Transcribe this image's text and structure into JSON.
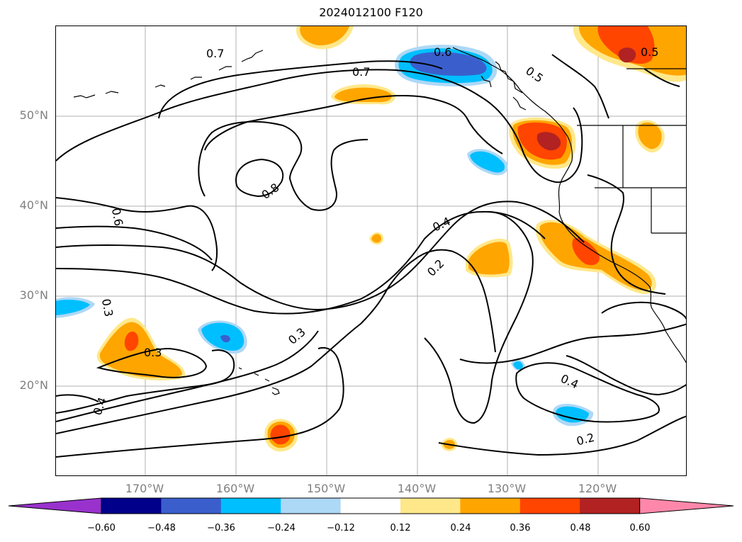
{
  "title": "2024012100 F120",
  "lat_labels": [
    "50°N",
    "40°N",
    "30°N",
    "20°N"
  ],
  "lon_labels": [
    "170°W",
    "160°W",
    "150°W",
    "140°W",
    "130°W",
    "120°W"
  ],
  "contour_labels": [
    "0.7",
    "0.7",
    "0.6",
    "0.5",
    "0.5",
    "0.8",
    "0.6",
    "0.4",
    "0.2",
    "0.3",
    "0.3",
    "0.3",
    "0.4",
    "0.4",
    "0.2"
  ],
  "colorbar": {
    "ticks": [
      "−0.60",
      "−0.48",
      "−0.36",
      "−0.24",
      "−0.12",
      "0.12",
      "0.24",
      "0.36",
      "0.48",
      "0.60"
    ],
    "colors": [
      "#9932cc",
      "#00008b",
      "#3a5fcd",
      "#00bfff",
      "#add8f6",
      "#ffffff",
      "#ffe88a",
      "#ffa500",
      "#ff4500",
      "#b22222",
      "#ff88aa"
    ]
  },
  "fill_colors": {
    "light_orange": "#ffe88a",
    "orange": "#ffa500",
    "red_orange": "#ff4500",
    "dark_red": "#b22222",
    "light_blue": "#add8f6",
    "blue": "#00bfff",
    "royal_blue": "#3a5fcd"
  }
}
